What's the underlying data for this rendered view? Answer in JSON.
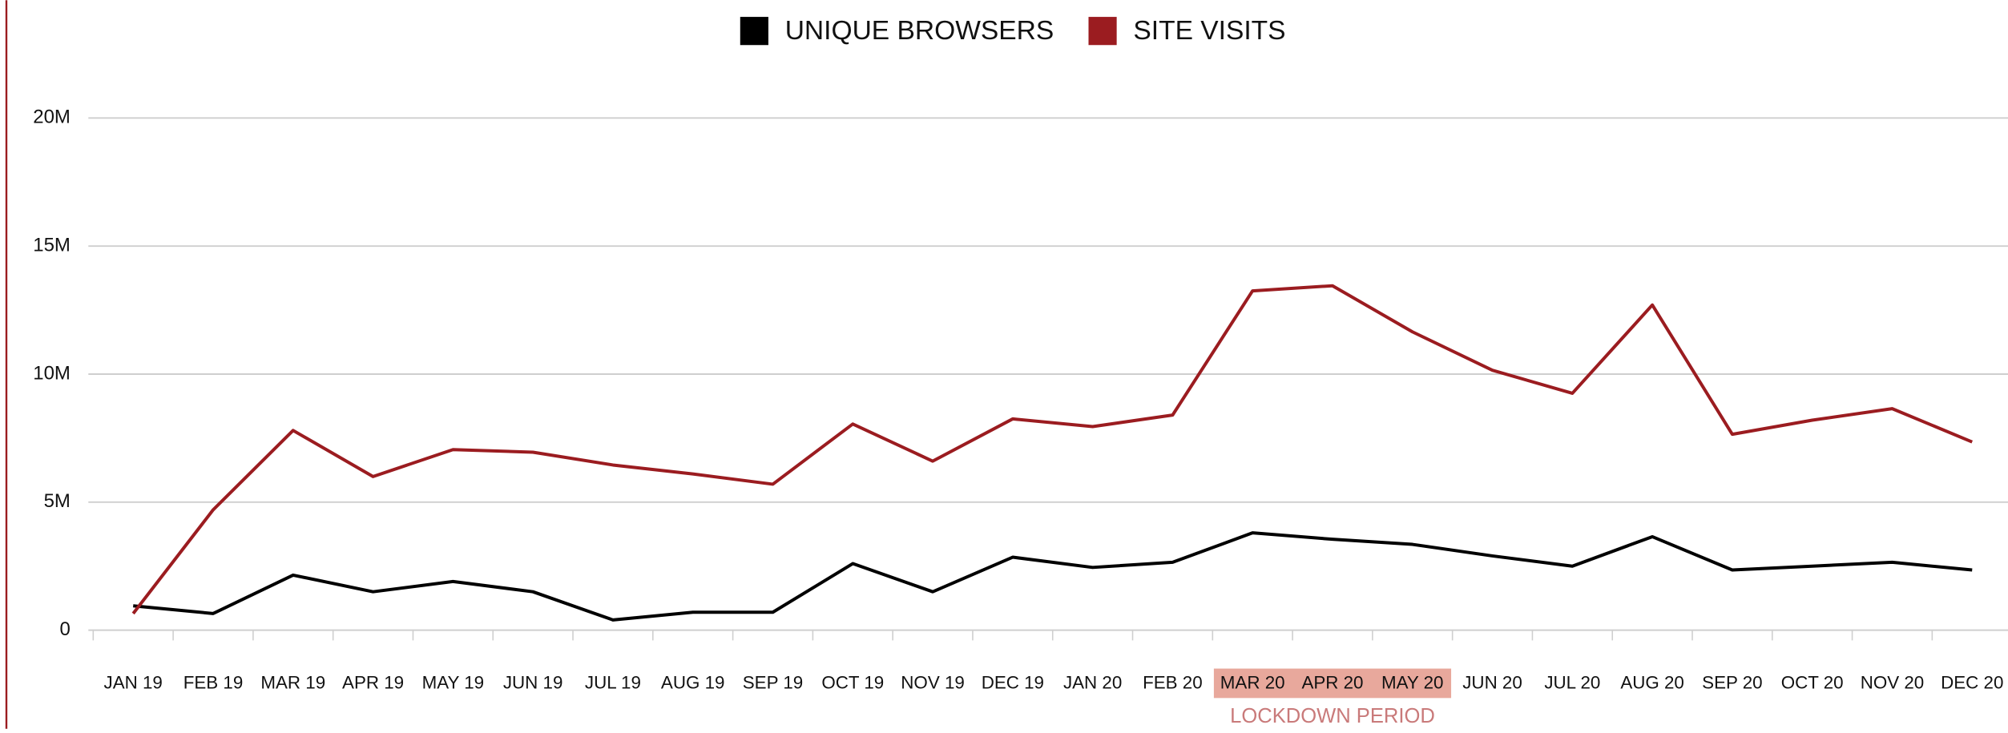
{
  "chart_data": {
    "type": "line",
    "categories": [
      "JAN 19",
      "FEB 19",
      "MAR 19",
      "APR 19",
      "MAY 19",
      "JUN 19",
      "JUL 19",
      "AUG 19",
      "SEP 19",
      "OCT 19",
      "NOV 19",
      "DEC 19",
      "JAN 20",
      "FEB 20",
      "MAR 20",
      "APR 20",
      "MAY 20",
      "JUN 20",
      "JUL 20",
      "AUG 20",
      "SEP 20",
      "OCT 20",
      "NOV 20",
      "DEC 20"
    ],
    "series": [
      {
        "name": "UNIQUE BROWSERS",
        "color": "#000000",
        "values": [
          950000,
          650000,
          2150000,
          1500000,
          1900000,
          1500000,
          400000,
          700000,
          700000,
          2600000,
          1500000,
          2850000,
          2450000,
          2650000,
          3800000,
          3550000,
          3350000,
          2900000,
          2500000,
          3650000,
          2350000,
          2500000,
          2650000,
          2350000
        ]
      },
      {
        "name": "SITE VISITS",
        "color": "#9b1c20",
        "values": [
          650000,
          4700000,
          7800000,
          6000000,
          7050000,
          6950000,
          6450000,
          6100000,
          5700000,
          8050000,
          6600000,
          8250000,
          7950000,
          8400000,
          13250000,
          13450000,
          11650000,
          10150000,
          9250000,
          12700000,
          7650000,
          8200000,
          8650000,
          7350000
        ]
      }
    ],
    "ylim": [
      0,
      20000000
    ],
    "yticks": [
      {
        "value": 0,
        "label": "0"
      },
      {
        "value": 5000000,
        "label": "5M"
      },
      {
        "value": 10000000,
        "label": "10M"
      },
      {
        "value": 15000000,
        "label": "15M"
      },
      {
        "value": 20000000,
        "label": "20M"
      }
    ],
    "grid": true,
    "legend": "top",
    "annotation": {
      "text": "LOCKDOWN PERIOD",
      "start": "MAR 20",
      "end": "MAY 20",
      "color": "#e8a89c"
    }
  }
}
